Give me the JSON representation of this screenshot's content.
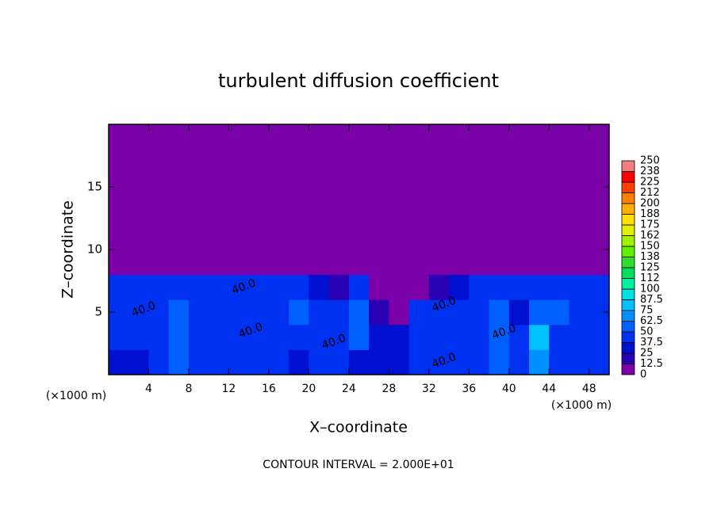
{
  "chart_data": {
    "type": "contour",
    "title": "turbulent diffusion coefficient",
    "xlabel": "X–coordinate",
    "ylabel": "Z–coordinate",
    "x_unit_left": "(×1000 m)",
    "x_unit_right": "(×1000 m)",
    "footer": "CONTOUR INTERVAL = 2.000E+01",
    "xlim": [
      0,
      50
    ],
    "xticks": [
      4,
      8,
      12,
      16,
      20,
      24,
      28,
      32,
      36,
      40,
      44,
      48
    ],
    "ylim": [
      0,
      20
    ],
    "yticks": [
      5,
      10,
      15
    ],
    "x": [
      1,
      3,
      5,
      7,
      9,
      11,
      13,
      15,
      17,
      19,
      21,
      23,
      25,
      27,
      29,
      31,
      33,
      35,
      37,
      39,
      41,
      43,
      45,
      47,
      49
    ],
    "z": [
      1,
      3,
      5,
      7,
      9,
      11,
      13,
      15,
      17,
      19
    ],
    "values": [
      [
        37,
        35,
        40,
        55,
        40,
        38,
        40,
        45,
        40,
        35,
        40,
        42,
        30,
        25,
        30,
        40,
        45,
        40,
        40,
        50,
        45,
        70,
        40,
        45,
        40
      ],
      [
        40,
        40,
        38,
        60,
        40,
        38,
        42,
        40,
        45,
        40,
        40,
        45,
        50,
        30,
        35,
        40,
        40,
        45,
        42,
        60,
        40,
        80,
        45,
        40,
        40
      ],
      [
        45,
        40,
        40,
        55,
        40,
        42,
        40,
        45,
        40,
        50,
        40,
        42,
        60,
        20,
        10,
        45,
        40,
        40,
        45,
        55,
        35,
        60,
        50,
        40,
        45
      ],
      [
        40,
        45,
        42,
        40,
        45,
        40,
        45,
        42,
        45,
        40,
        35,
        20,
        40,
        5,
        0,
        10,
        20,
        35,
        40,
        45,
        40,
        45,
        40,
        45,
        40
      ],
      [
        0,
        0,
        0,
        0,
        0,
        0,
        0,
        0,
        0,
        0,
        0,
        0,
        0,
        0,
        0,
        0,
        0,
        0,
        0,
        0,
        0,
        0,
        0,
        0,
        0
      ],
      [
        0,
        0,
        0,
        0,
        0,
        0,
        0,
        0,
        0,
        0,
        0,
        0,
        0,
        0,
        0,
        0,
        0,
        0,
        0,
        0,
        0,
        0,
        0,
        0,
        0
      ],
      [
        0,
        0,
        0,
        0,
        0,
        0,
        0,
        0,
        0,
        0,
        0,
        0,
        0,
        0,
        0,
        0,
        0,
        0,
        0,
        0,
        0,
        0,
        0,
        0,
        0
      ],
      [
        0,
        0,
        0,
        0,
        0,
        0,
        0,
        0,
        0,
        0,
        0,
        0,
        0,
        0,
        0,
        0,
        0,
        0,
        0,
        0,
        0,
        0,
        0,
        0,
        0
      ],
      [
        0,
        0,
        0,
        0,
        0,
        0,
        0,
        0,
        0,
        0,
        0,
        0,
        0,
        0,
        0,
        0,
        0,
        0,
        0,
        0,
        0,
        0,
        0,
        0,
        0
      ],
      [
        0,
        0,
        0,
        0,
        0,
        0,
        0,
        0,
        0,
        0,
        0,
        0,
        0,
        0,
        0,
        0,
        0,
        0,
        0,
        0,
        0,
        0,
        0,
        0,
        0
      ]
    ],
    "annotations": [
      {
        "text": "40.0",
        "x": 3.5,
        "y": 5.2
      },
      {
        "text": "40.0",
        "x": 13.5,
        "y": 7
      },
      {
        "text": "40.0",
        "x": 14.2,
        "y": 3.5
      },
      {
        "text": "40.0",
        "x": 22.5,
        "y": 2.6
      },
      {
        "text": "40.0",
        "x": 33.5,
        "y": 5.6
      },
      {
        "text": "40.0",
        "x": 33.5,
        "y": 1.1
      },
      {
        "text": "40.0",
        "x": 39.5,
        "y": 3.4
      }
    ],
    "colorbar_levels": [
      {
        "value": 0,
        "label": "0"
      },
      {
        "value": 12.5,
        "label": "12.5"
      },
      {
        "value": 25,
        "label": "25"
      },
      {
        "value": 37.5,
        "label": "37.5"
      },
      {
        "value": 50,
        "label": "50"
      },
      {
        "value": 62.5,
        "label": "62.5"
      },
      {
        "value": 75,
        "label": "75"
      },
      {
        "value": 87.5,
        "label": "87.5"
      },
      {
        "value": 100,
        "label": "100"
      },
      {
        "value": 112.5,
        "label": "112"
      },
      {
        "value": 125,
        "label": "125"
      },
      {
        "value": 137.5,
        "label": "138"
      },
      {
        "value": 150,
        "label": "150"
      },
      {
        "value": 162.5,
        "label": "162"
      },
      {
        "value": 175,
        "label": "175"
      },
      {
        "value": 187.5,
        "label": "188"
      },
      {
        "value": 200,
        "label": "200"
      },
      {
        "value": 212.5,
        "label": "212"
      },
      {
        "value": 225,
        "label": "225"
      },
      {
        "value": 237.5,
        "label": "238"
      },
      {
        "value": 250,
        "label": "250"
      }
    ],
    "colors": [
      "#7a00a8",
      "#2a00b4",
      "#0010d0",
      "#0030f0",
      "#0060ff",
      "#0090ff",
      "#00c0ff",
      "#00e0e0",
      "#00f0a0",
      "#00e060",
      "#30e030",
      "#60f000",
      "#a0f000",
      "#e0f000",
      "#ffe000",
      "#ffb000",
      "#ff8000",
      "#ff4000",
      "#ff0000",
      "#f08080"
    ]
  }
}
